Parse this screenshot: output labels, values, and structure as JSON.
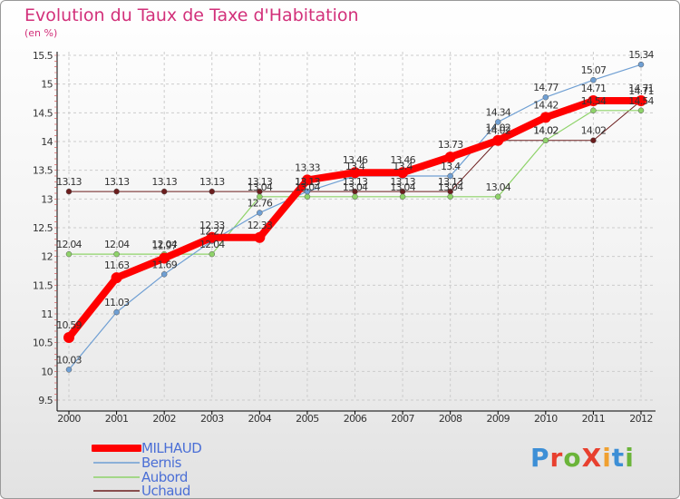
{
  "title": "Evolution du Taux de Taxe d'Habitation",
  "subtitle": "(en %)",
  "logo": {
    "text": "ProXiti",
    "colors": [
      "#3d8fd6",
      "#e8402f",
      "#6bb43a",
      "#e8402f",
      "#f0a030",
      "#3d8fd6",
      "#6bb43a"
    ]
  },
  "chart_data": {
    "type": "line",
    "title": "Evolution du Taux de Taxe d'Habitation",
    "ylabel": "(en %)",
    "xlabel": "",
    "x": [
      "2000",
      "2001",
      "2002",
      "2003",
      "2004",
      "2005",
      "2006",
      "2007",
      "2008",
      "2009",
      "2010",
      "2011",
      "2012"
    ],
    "ylim": [
      9.5,
      15.5
    ],
    "yticks": [
      "9.5",
      "10",
      "10.5",
      "11",
      "11.5",
      "12",
      "12.5",
      "13",
      "13.5",
      "14",
      "14.5",
      "15",
      "15.5"
    ],
    "grid": true,
    "series": [
      {
        "name": "Uchaud",
        "color": "#6b1d1d",
        "width": 1,
        "values": [
          13.13,
          13.13,
          13.13,
          13.13,
          13.13,
          13.13,
          13.13,
          13.13,
          13.13,
          14.02,
          14.02,
          14.02,
          14.71
        ],
        "labels": [
          "13.13",
          "13.13",
          "13.13",
          "13.13",
          "13.13",
          "13.13",
          "13.13",
          "13.13",
          "13.13",
          "14.02",
          "14.02",
          "14.02",
          "14.71"
        ]
      },
      {
        "name": "Aubord",
        "color": "#8fd36a",
        "width": 1.2,
        "values": [
          12.04,
          12.04,
          12.04,
          12.04,
          13.04,
          13.04,
          13.04,
          13.04,
          13.04,
          13.04,
          14.02,
          14.54,
          14.54
        ],
        "labels": [
          "12.04",
          "12.04",
          "12.04",
          "12.04",
          "13.04",
          "13.04",
          "13.04",
          "13.04",
          "13.04",
          "13.04",
          "14.02",
          "14.54",
          "14.54"
        ]
      },
      {
        "name": "Bernis",
        "color": "#6f9fd3",
        "width": 1.2,
        "values": [
          10.03,
          11.03,
          11.69,
          12.27,
          12.76,
          13.13,
          13.4,
          13.4,
          13.4,
          14.34,
          14.77,
          15.07,
          15.34
        ],
        "labels": [
          "10.03",
          "11.03",
          "11.69",
          "12.27",
          "12.76",
          "13.13",
          "13.4",
          "13.4",
          "13.4",
          "14.34",
          "14.77",
          "15.07",
          "15.34"
        ]
      },
      {
        "name": "MILHAUD",
        "color": "#ff0000",
        "width": 8,
        "values": [
          10.59,
          11.63,
          11.97,
          12.33,
          12.33,
          13.33,
          13.46,
          13.46,
          13.73,
          14.02,
          14.42,
          14.71,
          14.71
        ],
        "labels": [
          "10.59",
          "11.63",
          "11.97",
          "12.33",
          "12.33",
          "13.33",
          "13.46",
          "13.46",
          "13.73",
          "14.02",
          "14.42",
          "14.71",
          "14.71"
        ]
      }
    ],
    "legend_order": [
      "MILHAUD",
      "Bernis",
      "Aubord",
      "Uchaud"
    ]
  }
}
